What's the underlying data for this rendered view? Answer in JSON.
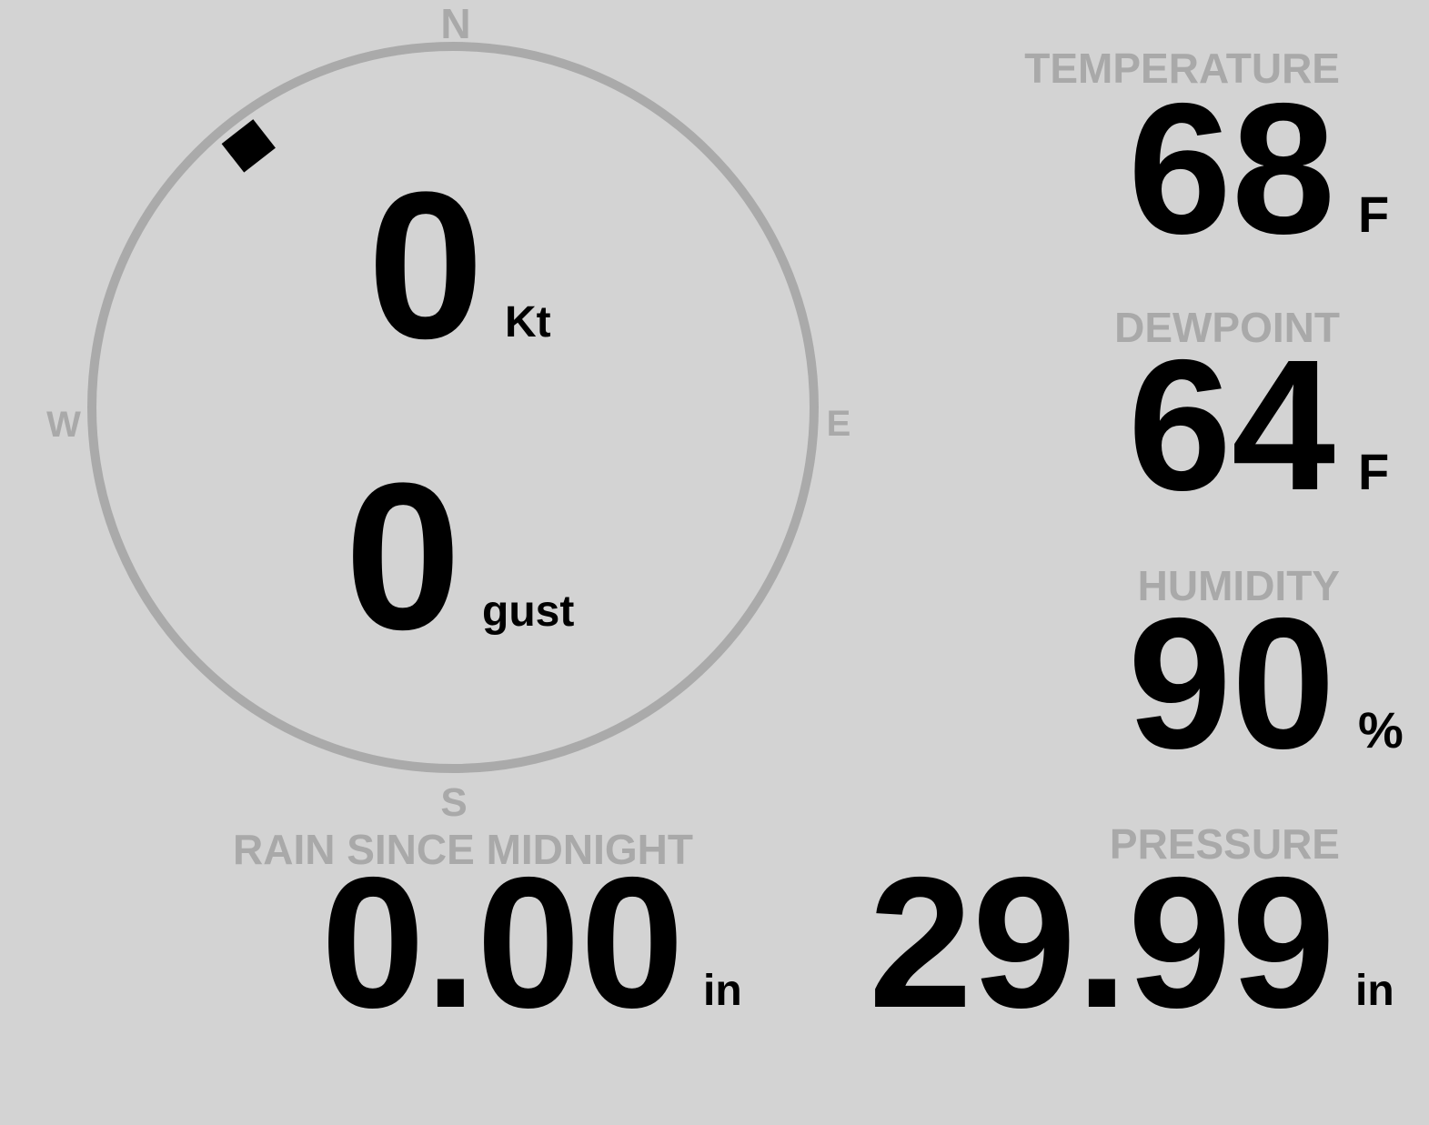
{
  "compass": {
    "north": "N",
    "east": "E",
    "south": "S",
    "west": "W",
    "wind_direction_deg": 322,
    "ring_color": "#aaaaaa",
    "marker_color": "#000000"
  },
  "wind": {
    "speed": "0",
    "speed_unit": "Kt",
    "gust": "0",
    "gust_unit": "gust"
  },
  "temperature": {
    "label": "TEMPERATURE",
    "value": "68",
    "unit": "F"
  },
  "dewpoint": {
    "label": "DEWPOINT",
    "value": "64",
    "unit": "F"
  },
  "humidity": {
    "label": "HUMIDITY",
    "value": "90",
    "unit": "%"
  },
  "pressure": {
    "label": "PRESSURE",
    "value": "29.99",
    "unit": "in"
  },
  "rain": {
    "label": "RAIN SINCE MIDNIGHT",
    "value": "0.00",
    "unit": "in"
  },
  "colors": {
    "background": "#d3d3d3",
    "label": "#a9a9a9",
    "value": "#000000"
  }
}
